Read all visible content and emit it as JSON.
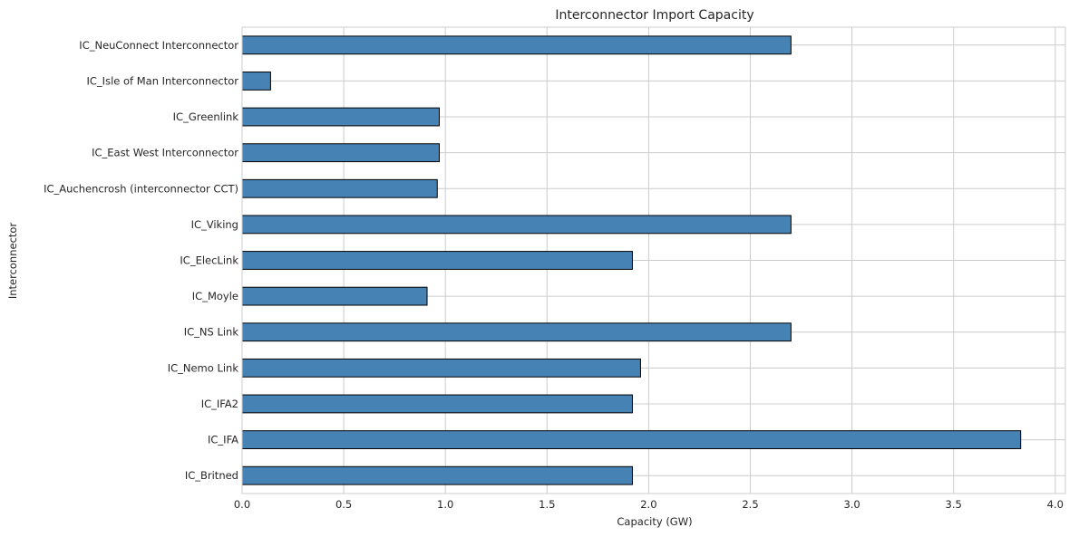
{
  "chart_data": {
    "type": "bar",
    "orientation": "horizontal",
    "title": "Interconnector Import Capacity",
    "xlabel": "Capacity (GW)",
    "ylabel": "Interconnector",
    "xlim": [
      0,
      4.05
    ],
    "xticks": [
      0.0,
      0.5,
      1.0,
      1.5,
      2.0,
      2.5,
      3.0,
      3.5,
      4.0
    ],
    "xtick_labels": [
      "0.0",
      "0.5",
      "1.0",
      "1.5",
      "2.0",
      "2.5",
      "3.0",
      "3.5",
      "4.0"
    ],
    "grid": true,
    "categories": [
      "IC_NeuConnect Interconnector",
      "IC_Isle of Man Interconnector",
      "IC_Greenlink",
      "IC_East West Interconnector",
      "IC_Auchencrosh (interconnector CCT)",
      "IC_Viking",
      "IC_ElecLink",
      "IC_Moyle",
      "IC_NS Link",
      "IC_Nemo Link",
      "IC_IFA2",
      "IC_IFA",
      "IC_Britned"
    ],
    "values": [
      2.7,
      0.14,
      0.97,
      0.97,
      0.96,
      2.7,
      1.92,
      0.91,
      2.7,
      1.96,
      1.92,
      3.83,
      1.92
    ],
    "bar_color": "#4682b4",
    "edge_color": "#000000"
  }
}
